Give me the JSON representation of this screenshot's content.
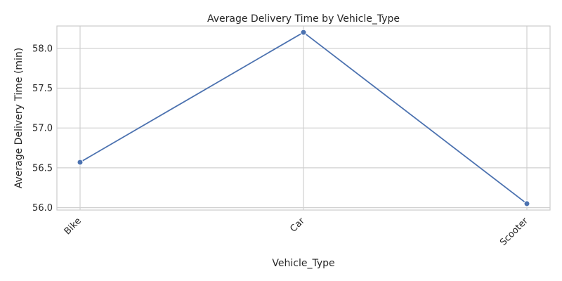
{
  "chart_data": {
    "type": "line",
    "title": "Average Delivery Time by Vehicle_Type",
    "xlabel": "Vehicle_Type",
    "ylabel": "Average Delivery Time (min)",
    "categories": [
      "Bike",
      "Car",
      "Scooter"
    ],
    "series": [
      {
        "values": [
          56.57,
          58.2,
          56.05
        ],
        "color": "#4c72b0",
        "marker": "circle"
      }
    ],
    "ylim": [
      55.97,
      58.28
    ],
    "yticks": [
      "56.0",
      "56.5",
      "57.0",
      "57.5",
      "58.0"
    ],
    "grid": true,
    "xtick_rotation_deg": 45
  }
}
